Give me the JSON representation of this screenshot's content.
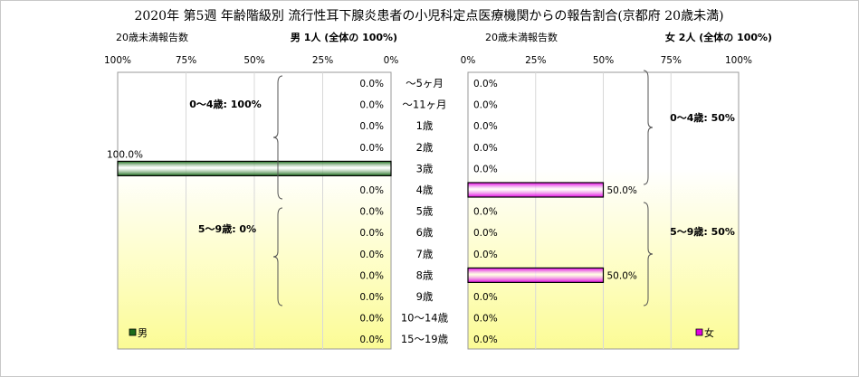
{
  "chart_data": {
    "type": "bar",
    "title": "2020年 第5週 年齢階級別 流行性耳下腺炎患者の小児科定点医療機関からの報告割合(京都府 20歳未満)",
    "categories": [
      "〜5ヶ月",
      "〜11ヶ月",
      "1歳",
      "2歳",
      "3歳",
      "4歳",
      "5歳",
      "6歳",
      "7歳",
      "8歳",
      "9歳",
      "10〜14歳",
      "15〜19歳"
    ],
    "xlim": [
      0,
      100
    ],
    "ticks": [
      "100%",
      "75%",
      "50%",
      "25%",
      "0%"
    ],
    "ticks_right": [
      "0%",
      "25%",
      "50%",
      "75%",
      "100%"
    ],
    "series": [
      {
        "name": "男",
        "axis_caption": "20歳未満報告数",
        "count_label": "男  1人 (全体の  100%)",
        "color": "#1a6b1a",
        "values": [
          0.0,
          0.0,
          0.0,
          0.0,
          100.0,
          0.0,
          0.0,
          0.0,
          0.0,
          0.0,
          0.0,
          0.0,
          0.0
        ],
        "value_labels": [
          "0.0%",
          "0.0%",
          "0.0%",
          "0.0%",
          "100.0%",
          "0.0%",
          "0.0%",
          "0.0%",
          "0.0%",
          "0.0%",
          "0.0%",
          "0.0%",
          "0.0%"
        ],
        "group_notes": [
          "0〜4歳: 100%",
          "5〜9歳: 0%"
        ]
      },
      {
        "name": "女",
        "axis_caption": "20歳未満報告数",
        "count_label": "女  2人 (全体の  100%)",
        "color": "#e000e0",
        "values": [
          0.0,
          0.0,
          0.0,
          0.0,
          0.0,
          50.0,
          0.0,
          0.0,
          0.0,
          50.0,
          0.0,
          0.0,
          0.0
        ],
        "value_labels": [
          "0.0%",
          "0.0%",
          "0.0%",
          "0.0%",
          "0.0%",
          "50.0%",
          "0.0%",
          "0.0%",
          "0.0%",
          "50.0%",
          "0.0%",
          "0.0%",
          "0.0%"
        ],
        "group_notes": [
          "0〜4歳: 50%",
          "5〜9歳: 50%"
        ]
      }
    ]
  }
}
